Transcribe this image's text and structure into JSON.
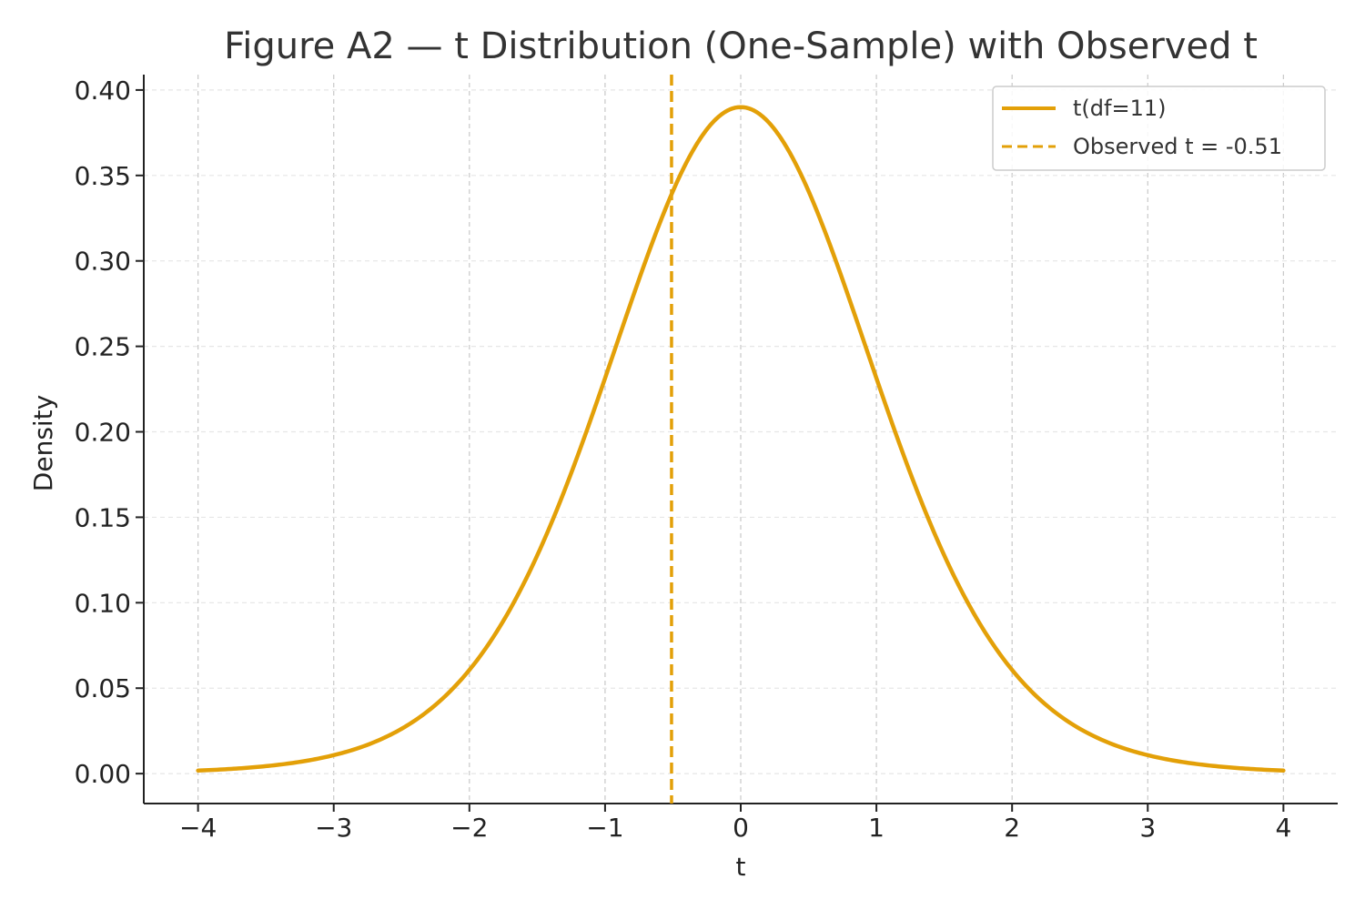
{
  "chart_data": {
    "type": "line",
    "title": "Figure A2 — t Distribution (One-Sample) with Observed t",
    "xlabel": "t",
    "ylabel": "Density",
    "xlim": [
      -4.4,
      4.4
    ],
    "ylim": [
      -0.0175,
      0.409
    ],
    "x_ticks": [
      -4,
      -3,
      -2,
      -1,
      0,
      1,
      2,
      3,
      4
    ],
    "x_tick_labels": [
      "−4",
      "−3",
      "−2",
      "−1",
      "0",
      "1",
      "2",
      "3",
      "4"
    ],
    "y_ticks": [
      0.0,
      0.05,
      0.1,
      0.15,
      0.2,
      0.25,
      0.3,
      0.35,
      0.4
    ],
    "y_tick_labels": [
      "0.00",
      "0.05",
      "0.10",
      "0.15",
      "0.20",
      "0.25",
      "0.30",
      "0.35",
      "0.40"
    ],
    "grid": true,
    "legend_position": "top-right",
    "series": [
      {
        "name": "t(df=11)",
        "style": "solid",
        "color": "#E3A008",
        "df": 11,
        "x_range": [
          -4,
          4
        ]
      }
    ],
    "reference_lines": [
      {
        "name": "Observed t = -0.51",
        "orientation": "vertical",
        "x": -0.51,
        "style": "dashed",
        "color": "#E3A008"
      }
    ]
  }
}
